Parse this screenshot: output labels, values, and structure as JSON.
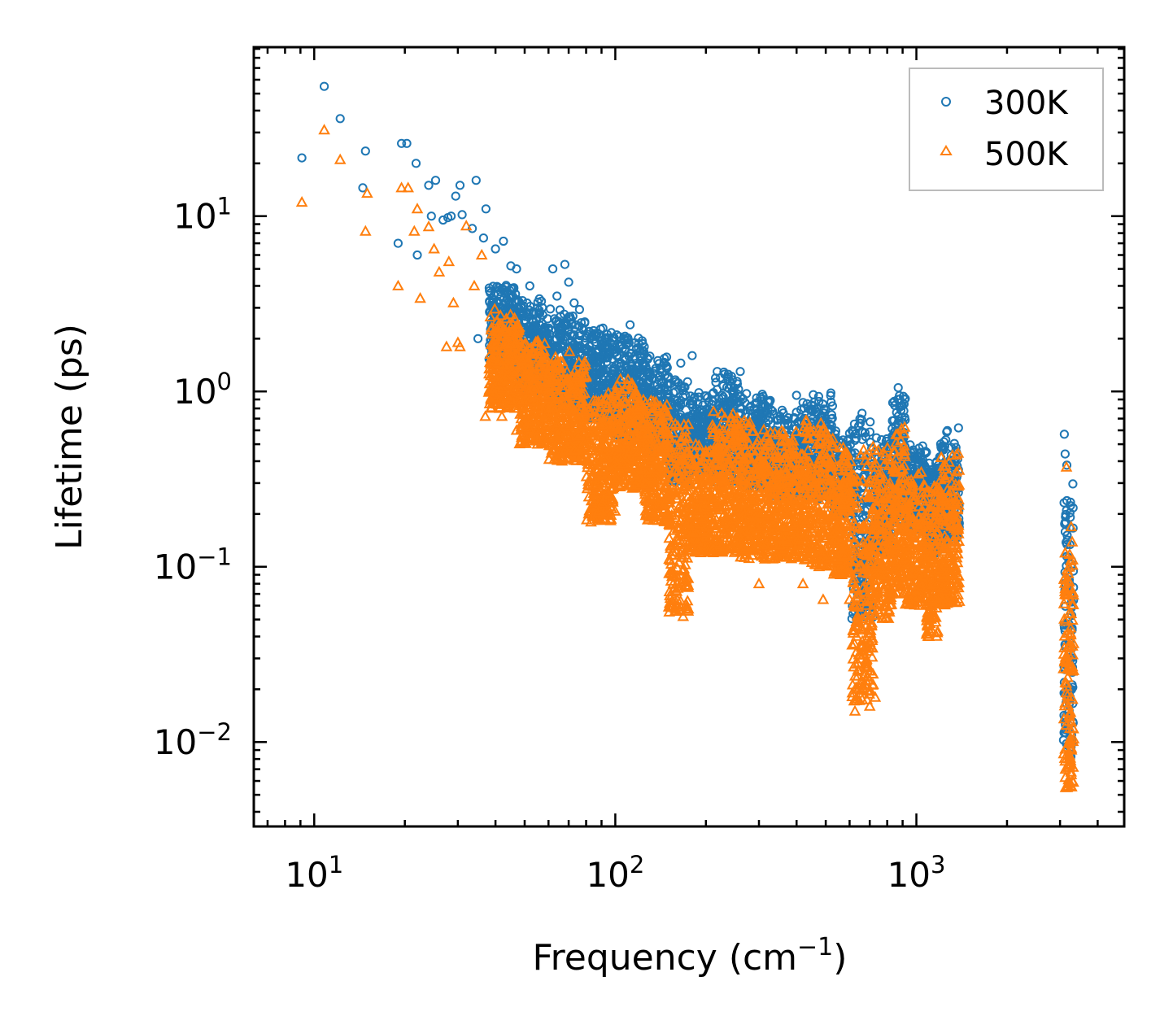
{
  "chart_data": {
    "type": "scatter",
    "title": "",
    "xlabel": "Frequency (cm",
    "xlabel_sup": "−1",
    "xlabel_suffix": ")",
    "ylabel": "Lifetime (ps)",
    "xscale": "log",
    "yscale": "log",
    "xlim": [
      6.3,
      4900
    ],
    "ylim": [
      0.0033,
      92
    ],
    "xticks": [
      {
        "value": 10,
        "base": "10",
        "exp": "1"
      },
      {
        "value": 100,
        "base": "10",
        "exp": "2"
      },
      {
        "value": 1000,
        "base": "10",
        "exp": "3"
      }
    ],
    "yticks": [
      {
        "value": 0.01,
        "base": "10",
        "exp": "−2"
      },
      {
        "value": 0.1,
        "base": "10",
        "exp": "−1"
      },
      {
        "value": 1,
        "base": "10",
        "exp": "0"
      },
      {
        "value": 10,
        "base": "10",
        "exp": "1"
      }
    ],
    "legend_position": "top-right",
    "series": [
      {
        "name": "300K",
        "marker": "circle",
        "color": "#1f77b4",
        "points": [
          [
            9.1,
            21.5
          ],
          [
            10.8,
            55
          ],
          [
            12.2,
            36
          ],
          [
            14.8,
            23.5
          ],
          [
            19.5,
            26
          ],
          [
            20.3,
            26
          ],
          [
            21.8,
            20
          ],
          [
            24,
            15
          ],
          [
            25.3,
            16
          ],
          [
            26.8,
            9.5
          ],
          [
            28.5,
            10
          ],
          [
            30.5,
            15
          ],
          [
            34.5,
            16
          ],
          [
            37.2,
            11
          ],
          [
            14.5,
            14.5
          ],
          [
            19,
            7
          ],
          [
            22,
            6
          ],
          [
            24.5,
            10
          ],
          [
            27.8,
            9.8
          ],
          [
            29.5,
            13
          ],
          [
            31,
            10.2
          ],
          [
            33.5,
            8.5
          ],
          [
            36.5,
            7.5
          ],
          [
            40,
            6.5
          ],
          [
            42.5,
            7.2
          ],
          [
            45,
            5.2
          ],
          [
            47,
            5
          ],
          [
            52,
            4
          ],
          [
            62,
            5
          ],
          [
            64,
            3.5
          ],
          [
            68,
            5.3
          ],
          [
            70,
            4.2
          ],
          [
            73,
            3.2
          ],
          [
            82,
            2.2
          ],
          [
            91,
            2.3
          ],
          [
            112,
            2.4
          ],
          [
            165,
            1.45
          ],
          [
            180,
            1.6
          ],
          [
            218,
            1.3
          ],
          [
            260,
            1.3
          ],
          [
            400,
            0.95
          ],
          [
            520,
            0.98
          ],
          [
            660,
            0.75
          ],
          [
            870,
            1.05
          ],
          [
            1080,
            0.45
          ],
          [
            1380,
            0.62
          ],
          [
            3100,
            0.57
          ],
          [
            3120,
            0.44
          ],
          [
            3160,
            0.38
          ],
          [
            35,
            2.0
          ],
          [
            40,
            2.2
          ],
          [
            45,
            2.5
          ],
          [
            56,
            2.4
          ]
        ],
        "bands": [
          [
            38,
            48,
            4.2,
            1.4
          ],
          [
            48,
            60,
            3.5,
            1.0
          ],
          [
            60,
            80,
            3.0,
            0.8
          ],
          [
            80,
            100,
            2.3,
            0.7
          ],
          [
            100,
            125,
            2.2,
            0.55
          ],
          [
            125,
            150,
            1.6,
            0.45
          ],
          [
            150,
            175,
            1.2,
            0.3
          ],
          [
            175,
            210,
            1.0,
            0.35
          ],
          [
            210,
            260,
            1.3,
            0.3
          ],
          [
            260,
            330,
            1.0,
            0.28
          ],
          [
            330,
            420,
            0.8,
            0.25
          ],
          [
            420,
            530,
            0.97,
            0.24
          ],
          [
            530,
            610,
            0.6,
            0.2
          ],
          [
            610,
            720,
            0.75,
            0.05
          ],
          [
            720,
            830,
            0.6,
            0.12
          ],
          [
            830,
            920,
            1.02,
            0.18
          ],
          [
            920,
            1080,
            0.5,
            0.16
          ],
          [
            1080,
            1180,
            0.4,
            0.12
          ],
          [
            1180,
            1390,
            0.6,
            0.14
          ],
          [
            3080,
            3330,
            0.32,
            0.008
          ]
        ]
      },
      {
        "name": "500K",
        "marker": "triangle",
        "color": "#ff7f0e",
        "points": [
          [
            9.1,
            12
          ],
          [
            10.8,
            31
          ],
          [
            12.2,
            21
          ],
          [
            14.8,
            8.2
          ],
          [
            15,
            13.5
          ],
          [
            19,
            4.0
          ],
          [
            19.5,
            14.5
          ],
          [
            20.5,
            14.5
          ],
          [
            21.5,
            8.2
          ],
          [
            22,
            11
          ],
          [
            22.5,
            3.4
          ],
          [
            24,
            8.7
          ],
          [
            25,
            6.5
          ],
          [
            26,
            4.8
          ],
          [
            27.5,
            1.8
          ],
          [
            28,
            5.5
          ],
          [
            29,
            3.2
          ],
          [
            30,
            1.9
          ],
          [
            30.5,
            1.8
          ],
          [
            32,
            8.8
          ],
          [
            34,
            4
          ],
          [
            36,
            6
          ],
          [
            37,
            0.72
          ],
          [
            40,
            1.7
          ],
          [
            42,
            0.72
          ],
          [
            44,
            1.6
          ],
          [
            47,
            0.6
          ],
          [
            50,
            0.55
          ],
          [
            52,
            0.9
          ],
          [
            55,
            0.6
          ],
          [
            83,
            0.18
          ],
          [
            120,
            0.45
          ],
          [
            135,
            0.3
          ],
          [
            150,
            0.2
          ],
          [
            168,
            0.052
          ],
          [
            172,
            0.057
          ],
          [
            185,
            0.5
          ],
          [
            195,
            0.26
          ],
          [
            300,
            0.08
          ],
          [
            420,
            0.08
          ],
          [
            490,
            0.065
          ],
          [
            600,
            0.065
          ],
          [
            625,
            0.015
          ],
          [
            640,
            0.02
          ],
          [
            700,
            0.016
          ],
          [
            730,
            0.018
          ],
          [
            1100,
            0.04
          ],
          [
            1150,
            0.25
          ],
          [
            3130,
            0.0055
          ],
          [
            3170,
            0.0055
          ],
          [
            3290,
            0.006
          ],
          [
            3150,
            0.37
          ]
        ],
        "bands": [
          [
            38,
            48,
            3.0,
            0.8
          ],
          [
            48,
            60,
            2.0,
            0.5
          ],
          [
            60,
            80,
            1.7,
            0.4
          ],
          [
            80,
            100,
            1.0,
            0.18
          ],
          [
            100,
            125,
            1.2,
            0.28
          ],
          [
            125,
            150,
            0.9,
            0.18
          ],
          [
            150,
            175,
            0.7,
            0.055
          ],
          [
            175,
            210,
            0.5,
            0.12
          ],
          [
            210,
            260,
            0.8,
            0.12
          ],
          [
            260,
            330,
            0.7,
            0.11
          ],
          [
            330,
            420,
            0.6,
            0.11
          ],
          [
            420,
            530,
            0.7,
            0.1
          ],
          [
            530,
            610,
            0.5,
            0.09
          ],
          [
            610,
            720,
            0.5,
            0.017
          ],
          [
            720,
            830,
            0.5,
            0.05
          ],
          [
            830,
            920,
            0.7,
            0.07
          ],
          [
            920,
            1080,
            0.35,
            0.06
          ],
          [
            1080,
            1180,
            0.3,
            0.04
          ],
          [
            1180,
            1390,
            0.45,
            0.06
          ],
          [
            3080,
            3330,
            0.2,
            0.0055
          ]
        ]
      }
    ]
  }
}
